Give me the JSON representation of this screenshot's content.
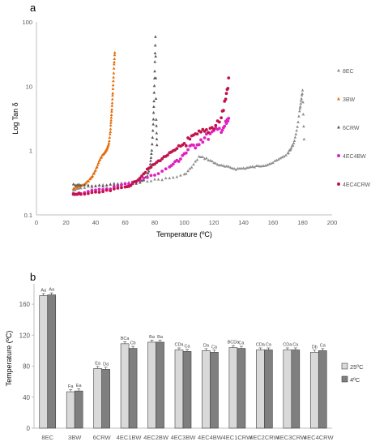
{
  "chart_data": [
    {
      "panel_label": "a",
      "type": "scatter",
      "title": "",
      "xlabel": "Temperature (ºC)",
      "ylabel": "Log Tan δ",
      "xlim": [
        0,
        200
      ],
      "ylim": [
        0.1,
        100
      ],
      "log_y": true,
      "x_ticks": [
        "0",
        "20",
        "40",
        "60",
        "80",
        "100",
        "120",
        "140",
        "160",
        "180",
        "200"
      ],
      "y_ticks": [
        "0.1",
        "1",
        "10",
        "100"
      ],
      "legend_position": "right",
      "grid": false,
      "series": [
        {
          "name": "8EC",
          "color": "#8c8c8c",
          "marker": "triangle",
          "x": [
            25,
            30,
            40,
            50,
            60,
            70,
            80,
            90,
            100,
            105,
            110,
            115,
            120,
            125,
            130,
            135,
            140,
            145,
            150,
            155,
            160,
            165,
            170,
            172,
            174,
            176,
            178,
            179,
            180,
            181
          ],
          "y": [
            0.24,
            0.26,
            0.28,
            0.3,
            0.31,
            0.33,
            0.35,
            0.37,
            0.42,
            0.55,
            0.8,
            0.75,
            0.65,
            0.58,
            0.55,
            0.52,
            0.53,
            0.55,
            0.57,
            0.6,
            0.65,
            0.75,
            0.9,
            1.05,
            1.3,
            2.0,
            4.0,
            6.0,
            8.5,
            1.5
          ]
        },
        {
          "name": "3BW",
          "color": "#e36c0a",
          "marker": "triangle",
          "x": [
            25,
            28,
            30,
            33,
            36,
            38,
            40,
            42,
            44,
            46,
            47,
            48,
            49,
            50,
            50.5,
            51,
            51.5,
            52,
            52.5,
            53
          ],
          "y": [
            0.26,
            0.27,
            0.28,
            0.3,
            0.35,
            0.4,
            0.5,
            0.65,
            0.8,
            0.9,
            1.0,
            1.1,
            1.3,
            2.0,
            3.0,
            4.5,
            7.0,
            12.0,
            22.0,
            33.0
          ]
        },
        {
          "name": "6CRW",
          "color": "#595959",
          "marker": "triangle",
          "x": [
            25,
            30,
            40,
            50,
            60,
            70,
            75,
            77,
            78,
            79,
            79.5,
            80,
            80.5,
            81,
            81.5
          ],
          "y": [
            0.3,
            0.29,
            0.28,
            0.29,
            0.3,
            0.32,
            0.4,
            0.6,
            1.0,
            2.5,
            6.0,
            17.0,
            60.0,
            3.0,
            1.2
          ]
        },
        {
          "name": "4EC4BW",
          "color": "#e020c0",
          "marker": "circle",
          "x": [
            25,
            30,
            40,
            50,
            60,
            70,
            80,
            90,
            95,
            100,
            105,
            110,
            115,
            120,
            125,
            128,
            130
          ],
          "y": [
            0.21,
            0.22,
            0.24,
            0.26,
            0.3,
            0.35,
            0.42,
            0.55,
            0.7,
            0.9,
            1.1,
            1.4,
            1.6,
            1.9,
            2.2,
            2.5,
            3.0
          ]
        },
        {
          "name": "4EC4CRW",
          "color": "#c0144a",
          "marker": "circle",
          "x": [
            25,
            30,
            40,
            50,
            60,
            65,
            70,
            75,
            80,
            85,
            90,
            95,
            100,
            105,
            110,
            115,
            120,
            125,
            128,
            130
          ],
          "y": [
            0.21,
            0.21,
            0.22,
            0.24,
            0.27,
            0.3,
            0.38,
            0.5,
            0.62,
            0.75,
            0.9,
            1.05,
            1.3,
            1.5,
            1.8,
            2.0,
            2.4,
            3.2,
            6.5,
            12.0
          ]
        }
      ]
    },
    {
      "panel_label": "b",
      "type": "bar",
      "title": "",
      "xlabel": "",
      "ylabel": "Temperature (ºC)",
      "ylim": [
        0,
        180
      ],
      "y_ticks": [
        "0",
        "40",
        "80",
        "120",
        "160"
      ],
      "legend_position": "right",
      "grid": false,
      "categories": [
        "8EC",
        "3BW",
        "6CRW",
        "4EC1BW",
        "4EC2BW",
        "4EC3BW",
        "4EC4BW",
        "4EC1CRW",
        "4EC2CRW",
        "4EC3CRW",
        "4EC4CRW"
      ],
      "series": [
        {
          "name": "25ºC",
          "color": "#d9d9d9",
          "values": [
            171,
            47,
            77,
            109,
            111,
            101,
            100,
            104,
            101,
            101,
            98
          ],
          "labels": [
            "Aa",
            "Fa",
            "Ea",
            "BCa",
            "Ba",
            "CDa",
            "Da",
            "BCDa",
            "CDa",
            "CDa",
            "Db"
          ]
        },
        {
          "name": "4ºC",
          "color": "#7f7f7f",
          "values": [
            172,
            48,
            76,
            103,
            111,
            99,
            98,
            103,
            101,
            101,
            100
          ],
          "labels": [
            "Aa",
            "Ea",
            "Da",
            "Cb",
            "Ba",
            "Ca",
            "Ca",
            "Ca",
            "Ca",
            "Ca",
            "Ca"
          ]
        }
      ]
    }
  ]
}
